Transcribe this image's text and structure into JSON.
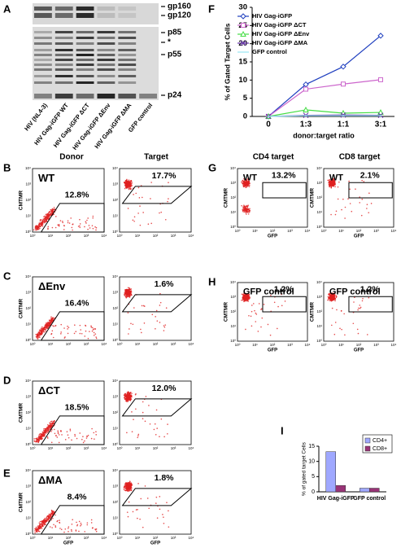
{
  "panel_labels": [
    "A",
    "B",
    "C",
    "D",
    "E",
    "F",
    "G",
    "H",
    "I"
  ],
  "blot": {
    "lanes": [
      "HIV (NL4-3)",
      "HIV Gag-iGFP WT",
      "HIV Gag-iGFP ΔCT",
      "HIV Gag-iGFP ΔEnv",
      "HIV Gag-iGFP ΔMA",
      "GFP control"
    ],
    "bands": [
      "gp160",
      "gp120",
      "p85",
      "*",
      "p55",
      "p24"
    ]
  },
  "flow": {
    "axis_ticks": [
      "10⁰",
      "10¹",
      "10²",
      "10³",
      "10⁴"
    ],
    "y_label": "CMTMR",
    "x_label": "GFP",
    "columns_left": [
      "Donor",
      "Target"
    ],
    "columns_right": [
      "CD4 target",
      "CD8 target"
    ],
    "plots": [
      {
        "label": "WT",
        "percent": "12.8%"
      },
      {
        "percent": "17.7%"
      },
      {
        "label": "ΔEnv",
        "percent": "16.4%"
      },
      {
        "percent": "1.6%"
      },
      {
        "label": "ΔCT",
        "percent": "18.5%"
      },
      {
        "percent": "12.0%"
      },
      {
        "label": "ΔMA",
        "percent": "8.4%"
      },
      {
        "percent": "1.8%"
      },
      {
        "label": "WT",
        "percent": "13.2%"
      },
      {
        "label": "WT",
        "percent": "2.1%"
      },
      {
        "label": "GFP control",
        "percent": "1.2%"
      },
      {
        "label": "GFP control",
        "percent": "1.2%"
      }
    ]
  },
  "chart_data": [
    {
      "type": "line",
      "x_label": "donor:target ratio",
      "y_label": "% of Gated Target Cells",
      "categories": [
        "0",
        "1:3",
        "1:1",
        "3:1"
      ],
      "ylim": [
        0,
        30
      ],
      "yticks": [
        0,
        5,
        10,
        15,
        20,
        25,
        30
      ],
      "series": [
        {
          "name": "HIV Gag-iGFP",
          "color": "#1f3fbf",
          "marker": "diamond",
          "values": [
            0,
            8.8,
            13.7,
            22.2
          ]
        },
        {
          "name": "HIV Gag-iGFP ΔCT",
          "color": "#cc66cc",
          "marker": "square",
          "values": [
            0,
            7.5,
            8.9,
            10.1
          ]
        },
        {
          "name": "HIV Gag-iGFP ΔEnv",
          "color": "#44dd44",
          "marker": "triangle",
          "values": [
            0,
            1.8,
            0.9,
            1.1
          ]
        },
        {
          "name": "HIV Gag-iGFP ΔMA",
          "color": "#6633aa",
          "marker": "x",
          "values": [
            0,
            0.3,
            0.4,
            0.3
          ]
        },
        {
          "name": "GFP control",
          "color": "#99e6f2",
          "marker": "none",
          "values": [
            0,
            0.2,
            0.2,
            0.2
          ]
        }
      ]
    },
    {
      "type": "bar",
      "y_label": "% of gated target Cells",
      "categories": [
        "HIV Gag-iGFP",
        "GFP control"
      ],
      "ylim": [
        0,
        15
      ],
      "yticks": [
        0,
        5,
        10,
        15
      ],
      "series": [
        {
          "name": "CD4+",
          "color": "#9fa8ff",
          "values": [
            13.2,
            1.2
          ]
        },
        {
          "name": "CD8+",
          "color": "#993377",
          "values": [
            2.1,
            1.2
          ]
        }
      ]
    }
  ]
}
